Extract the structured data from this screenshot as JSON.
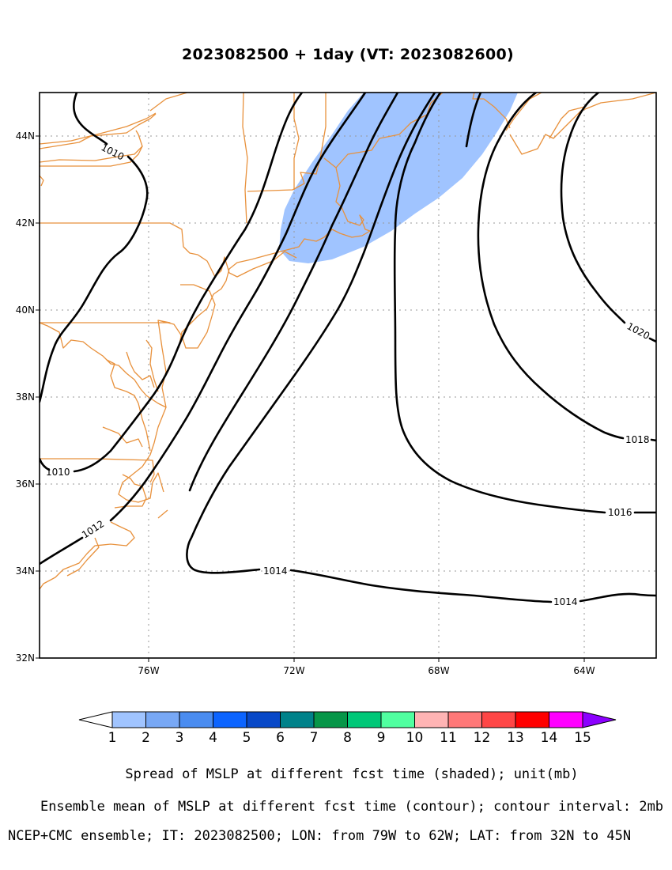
{
  "title": "2023082500 + 1day (VT: 2023082600)",
  "map": {
    "lat_labels": [
      "44N",
      "42N",
      "40N",
      "38N",
      "36N",
      "34N",
      "32N"
    ],
    "lon_labels": [
      "76W",
      "72W",
      "68W",
      "64W"
    ],
    "extent": {
      "lon_min": -79,
      "lon_max": -62,
      "lat_min": 32,
      "lat_max": 45
    },
    "coastline_color": "#e8913c",
    "contour_color": "#000000",
    "spread_color": "#a0c4ff",
    "contour_labels": [
      {
        "id": "c1010a",
        "text": "1010"
      },
      {
        "id": "c1010b",
        "text": "1010"
      },
      {
        "id": "c1012",
        "text": "1012"
      },
      {
        "id": "c1014a",
        "text": "1014"
      },
      {
        "id": "c1014b",
        "text": "1014"
      },
      {
        "id": "c1016",
        "text": "1016"
      },
      {
        "id": "c1018",
        "text": "1018"
      },
      {
        "id": "c1020",
        "text": "1020"
      }
    ]
  },
  "colorbar": {
    "ticks": [
      "1",
      "2",
      "3",
      "4",
      "5",
      "6",
      "7",
      "8",
      "9",
      "10",
      "11",
      "12",
      "13",
      "14",
      "15"
    ],
    "colors": [
      "#a0c4ff",
      "#78a8f5",
      "#4a8cf0",
      "#0c64ff",
      "#0848c8",
      "#00828a",
      "#069648",
      "#00c878",
      "#50ffa0",
      "#ffb4b4",
      "#ff7878",
      "#ff4646",
      "#ff0000",
      "#ff00ff",
      "#8c00ff"
    ],
    "left_triangle_color": "#ffffff"
  },
  "captions": {
    "line1": "Spread of MSLP at different fcst time (shaded); unit(mb)",
    "line2": "Ensemble mean of MSLP at different fcst time (contour); contour interval: 2mb",
    "line3": "NCEP+CMC ensemble; IT: 2023082500; LON: from 79W to 62W; LAT: from 32N to 45N"
  }
}
